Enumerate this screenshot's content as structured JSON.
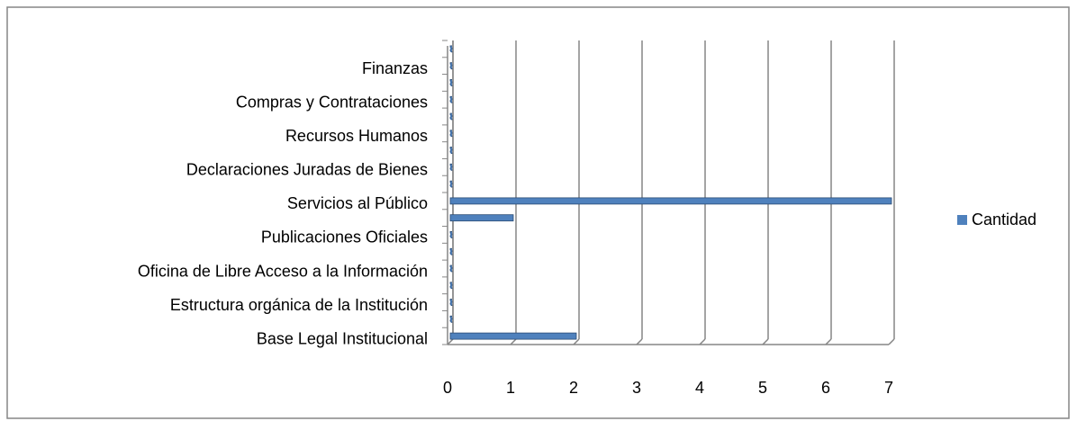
{
  "chart_data": {
    "type": "bar",
    "orientation": "horizontal",
    "categories": [
      "Base Legal Institucional",
      null,
      "Estructura orgánica de la Institución",
      null,
      "Oficina de Libre Acceso a la Información",
      null,
      "Publicaciones Oficiales",
      null,
      "Servicios al Público",
      null,
      "Declaraciones Juradas de Bienes",
      null,
      "Recursos Humanos",
      null,
      "Compras y Contrataciones",
      null,
      "Finanzas",
      null
    ],
    "series": [
      {
        "name": "Cantidad",
        "color": "#4f81bd",
        "values": [
          2,
          0,
          0,
          0,
          0,
          0,
          0,
          1,
          7,
          0,
          0,
          0,
          0,
          0,
          0,
          0,
          0,
          0
        ]
      }
    ],
    "xlim": [
      0,
      7
    ],
    "xticks": [
      0,
      1,
      2,
      3,
      4,
      5,
      6,
      7
    ],
    "grid": true,
    "legend": "right"
  }
}
